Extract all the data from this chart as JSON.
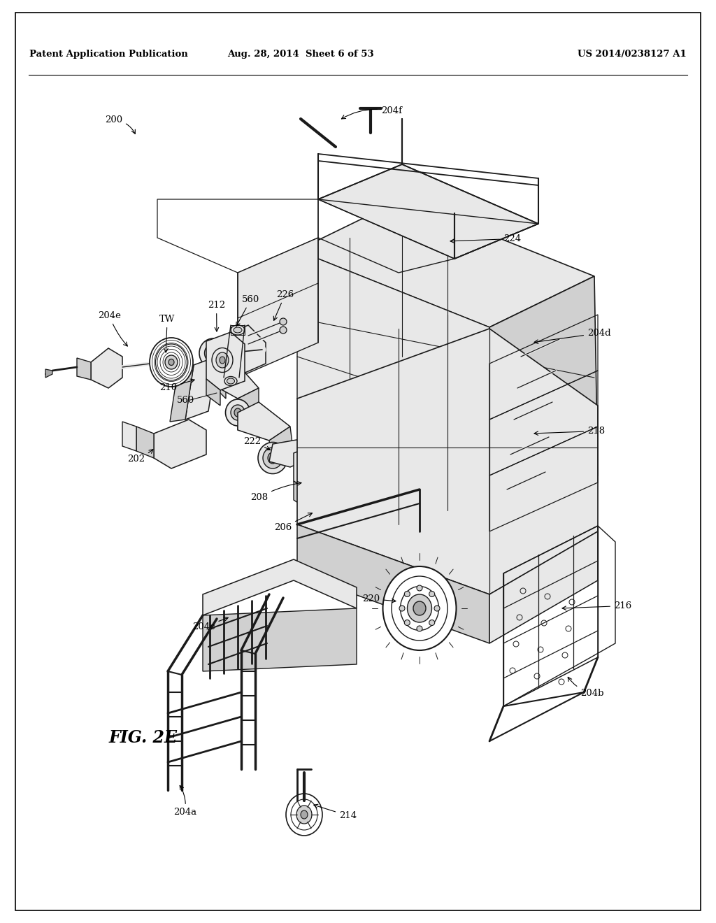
{
  "bg_color": "#ffffff",
  "lc": "#1a1a1a",
  "header_left": "Patent Application Publication",
  "header_center": "Aug. 28, 2014  Sheet 6 of 53",
  "header_right": "US 2014/0238127 A1",
  "fig_label": "FIG. 2E",
  "gray_light": "#e8e8e8",
  "gray_mid": "#d0d0d0",
  "gray_dark": "#a8a8a8",
  "white": "#ffffff"
}
